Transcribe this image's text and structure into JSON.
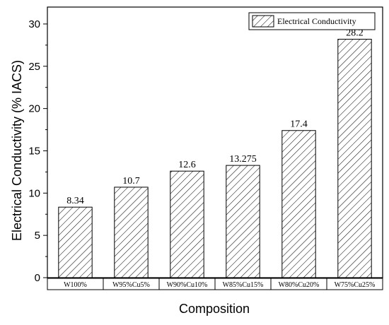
{
  "chart_data": {
    "type": "bar",
    "categories": [
      "W100%",
      "W95%Cu5%",
      "W90%Cu10%",
      "W85%Cu15%",
      "W80%Cu20%",
      "W75%Cu25%"
    ],
    "series": [
      {
        "name": "Electrical Conductivity",
        "values": [
          8.34,
          10.7,
          12.6,
          13.275,
          17.4,
          28.2
        ]
      }
    ],
    "data_labels": [
      "8.34",
      "10.7",
      "12.6",
      "13.275",
      "17.4",
      "28.2"
    ],
    "xlabel": "Composition",
    "ylabel": "Electrical Conductivity (% IACS)",
    "ylim": [
      0,
      32
    ],
    "yticks": [
      0,
      5,
      10,
      15,
      20,
      25,
      30
    ],
    "legend_position": "top-right",
    "grid": false,
    "bar_fill": "hatched",
    "colors": {
      "bar_stroke": "#000000",
      "hatch": "#000000",
      "background": "#ffffff"
    }
  }
}
